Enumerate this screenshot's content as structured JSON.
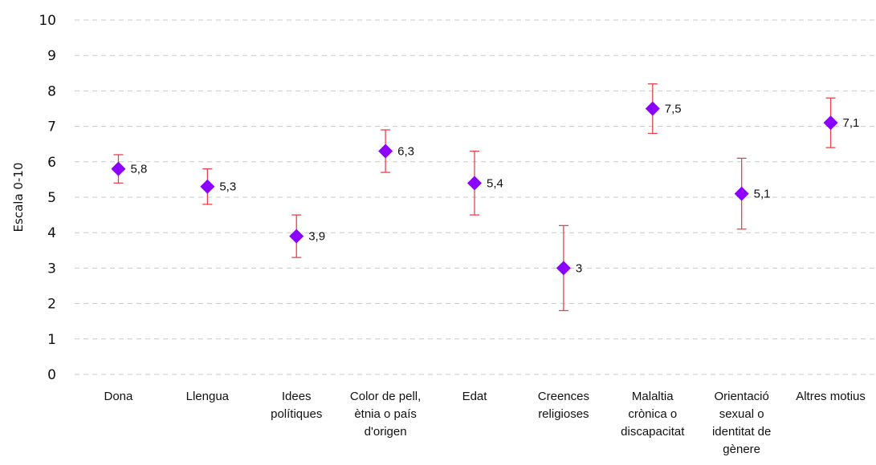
{
  "chart_data": {
    "type": "scatter",
    "ylabel": "Escala 0-10",
    "ylim": [
      0,
      10
    ],
    "yticks": [
      "0",
      "1",
      "2",
      "3",
      "4",
      "5",
      "6",
      "7",
      "8",
      "9",
      "10"
    ],
    "grid": true,
    "categories": [
      "Dona",
      "Llengua",
      "Idees polítiques",
      "Color de pell, ètnia o país d'origen",
      "Edat",
      "Creences religioses",
      "Malaltia crònica o discapacitat",
      "Orientació sexual o identitat de gènere",
      "Altres motius"
    ],
    "category_lines": [
      [
        "Dona"
      ],
      [
        "Llengua"
      ],
      [
        "Idees",
        "polítiques"
      ],
      [
        "Color de pell,",
        "ètnia o país",
        "d'origen"
      ],
      [
        "Edat"
      ],
      [
        "Creences",
        "religioses"
      ],
      [
        "Malaltia",
        "crònica o",
        "discapacitat"
      ],
      [
        "Orientació",
        "sexual o",
        "identitat de",
        "gènere"
      ],
      [
        "Altres motius"
      ]
    ],
    "values": [
      5.8,
      5.3,
      3.9,
      6.3,
      5.4,
      3.0,
      7.5,
      5.1,
      7.1
    ],
    "labels": [
      "5,8",
      "5,3",
      "3,9",
      "6,3",
      "5,4",
      "3",
      "7,5",
      "5,1",
      "7,1"
    ],
    "error_low": [
      5.4,
      4.8,
      3.3,
      5.7,
      4.5,
      1.8,
      6.8,
      4.1,
      6.4
    ],
    "error_high": [
      6.2,
      5.8,
      4.5,
      6.9,
      6.3,
      4.2,
      8.2,
      6.1,
      7.8
    ],
    "colors": {
      "marker": "#8B00FF",
      "error_bar": "#E8434A"
    }
  }
}
